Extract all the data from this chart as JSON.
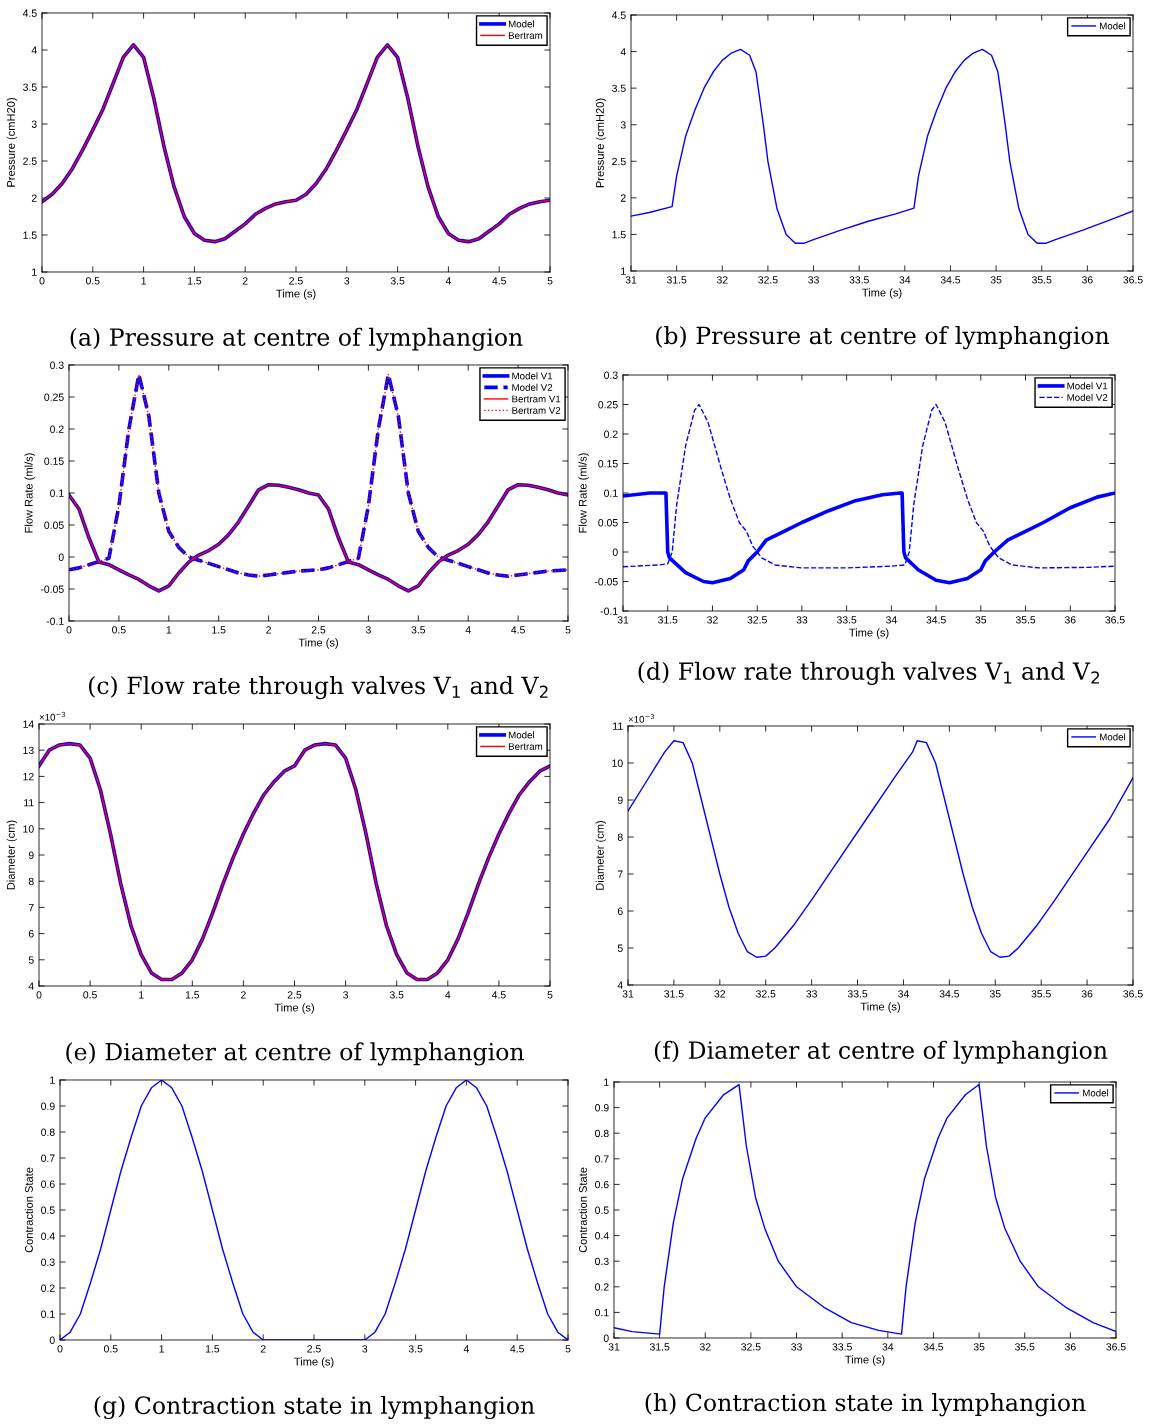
{
  "chart_data": [
    {
      "type": "line",
      "title": "(a) Pressure at centre of lymphangion",
      "xlabel": "Time (s)",
      "ylabel": "Pressure (cmH20)",
      "xlim": [
        0,
        5
      ],
      "ylim": [
        1,
        4.5
      ],
      "xticks": [
        0,
        0.5,
        1,
        1.5,
        2,
        2.5,
        3,
        3.5,
        4,
        4.5,
        5
      ],
      "yticks": [
        1,
        1.5,
        2,
        2.5,
        3,
        3.5,
        4,
        4.5
      ],
      "legend": "top right",
      "grid": false,
      "x": [
        0,
        0.1,
        0.2,
        0.3,
        0.4,
        0.5,
        0.6,
        0.7,
        0.8,
        0.9,
        1.0,
        1.1,
        1.2,
        1.3,
        1.4,
        1.5,
        1.6,
        1.7,
        1.8,
        1.9,
        2.0,
        2.1,
        2.2,
        2.3,
        2.4,
        2.5,
        2.6,
        2.7,
        2.8,
        2.9,
        3.0,
        3.1,
        3.2,
        3.3,
        3.4,
        3.5,
        3.6,
        3.7,
        3.8,
        3.9,
        4.0,
        4.1,
        4.2,
        4.3,
        4.4,
        4.5,
        4.6,
        4.7,
        4.8,
        4.9,
        5.0
      ],
      "series": [
        {
          "name": "Model",
          "color": "#0000ff",
          "values": [
            1.95,
            2.05,
            2.2,
            2.4,
            2.65,
            2.92,
            3.2,
            3.55,
            3.9,
            4.07,
            3.9,
            3.35,
            2.7,
            2.15,
            1.75,
            1.52,
            1.43,
            1.41,
            1.45,
            1.55,
            1.65,
            1.78,
            1.86,
            1.92,
            1.95,
            1.97,
            2.05,
            2.2,
            2.4,
            2.65,
            2.92,
            3.2,
            3.55,
            3.9,
            4.07,
            3.9,
            3.35,
            2.7,
            2.15,
            1.75,
            1.52,
            1.43,
            1.41,
            1.45,
            1.55,
            1.65,
            1.78,
            1.86,
            1.92,
            1.95,
            1.97
          ]
        },
        {
          "name": "Bertram",
          "color": "#ff0000",
          "values": [
            1.95,
            2.05,
            2.2,
            2.4,
            2.65,
            2.92,
            3.2,
            3.55,
            3.9,
            4.07,
            3.9,
            3.35,
            2.7,
            2.15,
            1.75,
            1.52,
            1.43,
            1.41,
            1.45,
            1.55,
            1.65,
            1.78,
            1.86,
            1.92,
            1.95,
            1.97,
            2.05,
            2.2,
            2.4,
            2.65,
            2.92,
            3.2,
            3.55,
            3.9,
            4.07,
            3.9,
            3.35,
            2.7,
            2.15,
            1.75,
            1.52,
            1.43,
            1.41,
            1.45,
            1.55,
            1.65,
            1.78,
            1.86,
            1.92,
            1.95,
            1.97
          ]
        }
      ]
    },
    {
      "type": "line",
      "title": "(b) Pressure at centre of lymphangion",
      "xlabel": "Time (s)",
      "ylabel": "Pressure (cmH20)",
      "xlim": [
        31,
        36.5
      ],
      "ylim": [
        1,
        4.5
      ],
      "xticks": [
        31,
        31.5,
        32,
        32.5,
        33,
        33.5,
        34,
        34.5,
        35,
        35.5,
        36,
        36.5
      ],
      "yticks": [
        1,
        1.5,
        2,
        2.5,
        3,
        3.5,
        4,
        4.5
      ],
      "legend": "top right",
      "grid": false,
      "series": [
        {
          "name": "Model",
          "color": "#0000ff",
          "x": [
            31,
            31.2,
            31.45,
            31.5,
            31.6,
            31.7,
            31.8,
            31.9,
            32.0,
            32.1,
            32.2,
            32.3,
            32.37,
            32.45,
            32.5,
            32.6,
            32.7,
            32.8,
            32.9,
            33.0,
            33.3,
            33.6,
            33.9,
            34.1,
            34.15,
            34.25,
            34.35,
            34.45,
            34.55,
            34.65,
            34.75,
            34.85,
            34.95,
            35.02,
            35.1,
            35.15,
            35.25,
            35.35,
            35.45,
            35.55,
            35.65,
            35.95,
            36.25,
            36.5
          ],
          "values": [
            1.75,
            1.8,
            1.88,
            2.3,
            2.85,
            3.2,
            3.5,
            3.72,
            3.88,
            3.98,
            4.03,
            3.95,
            3.72,
            3.0,
            2.5,
            1.85,
            1.5,
            1.38,
            1.38,
            1.43,
            1.56,
            1.68,
            1.78,
            1.86,
            2.3,
            2.85,
            3.2,
            3.5,
            3.72,
            3.88,
            3.98,
            4.03,
            3.95,
            3.72,
            3.0,
            2.5,
            1.85,
            1.5,
            1.38,
            1.38,
            1.43,
            1.56,
            1.7,
            1.82
          ]
        }
      ]
    },
    {
      "type": "line",
      "title": "(c) Flow rate through valves V$_{1}$ and V$_{2}$",
      "xlabel": "Time (s)",
      "ylabel": "Flow Rate (ml/s)",
      "xlim": [
        0,
        5
      ],
      "ylim": [
        -0.1,
        0.3
      ],
      "xticks": [
        0,
        0.5,
        1,
        1.5,
        2,
        2.5,
        3,
        3.5,
        4,
        4.5,
        5
      ],
      "yticks": [
        -0.1,
        -0.05,
        0,
        0.05,
        0.1,
        0.15,
        0.2,
        0.25,
        0.3
      ],
      "legend": "top right",
      "grid": false,
      "x": [
        0,
        0.1,
        0.2,
        0.3,
        0.4,
        0.5,
        0.6,
        0.7,
        0.8,
        0.9,
        1.0,
        1.1,
        1.2,
        1.3,
        1.4,
        1.5,
        1.6,
        1.7,
        1.8,
        1.9,
        2.0,
        2.1,
        2.2,
        2.3,
        2.4,
        2.5,
        2.6,
        2.7,
        2.8,
        2.9,
        3.0,
        3.1,
        3.2,
        3.3,
        3.4,
        3.5,
        3.6,
        3.7,
        3.8,
        3.9,
        4.0,
        4.1,
        4.2,
        4.3,
        4.4,
        4.5,
        4.6,
        4.7,
        4.8,
        4.9,
        5.0
      ],
      "series": [
        {
          "name": "Model V1",
          "color": "#0000ff",
          "line_style": "solid",
          "values": [
            0.097,
            0.075,
            0.03,
            -0.008,
            -0.012,
            -0.02,
            -0.028,
            -0.035,
            -0.045,
            -0.053,
            -0.045,
            -0.025,
            -0.008,
            0.003,
            0.01,
            0.02,
            0.035,
            0.055,
            0.08,
            0.105,
            0.113,
            0.112,
            0.109,
            0.105,
            0.1,
            0.097,
            0.075,
            0.03,
            -0.008,
            -0.012,
            -0.02,
            -0.028,
            -0.035,
            -0.045,
            -0.053,
            -0.045,
            -0.025,
            -0.008,
            0.003,
            0.01,
            0.02,
            0.035,
            0.055,
            0.08,
            0.105,
            0.113,
            0.112,
            0.109,
            0.105,
            0.1,
            0.097
          ]
        },
        {
          "name": "Model V2",
          "color": "#0000ff",
          "line_style": "dashed",
          "values": [
            -0.02,
            -0.017,
            -0.012,
            -0.007,
            -0.002,
            0.08,
            0.2,
            0.285,
            0.22,
            0.1,
            0.04,
            0.015,
            0.0,
            -0.005,
            -0.01,
            -0.015,
            -0.02,
            -0.025,
            -0.028,
            -0.03,
            -0.028,
            -0.026,
            -0.024,
            -0.022,
            -0.021,
            -0.02,
            -0.017,
            -0.012,
            -0.007,
            -0.002,
            0.08,
            0.2,
            0.285,
            0.22,
            0.1,
            0.04,
            0.015,
            0.0,
            -0.005,
            -0.01,
            -0.015,
            -0.02,
            -0.025,
            -0.028,
            -0.03,
            -0.028,
            -0.026,
            -0.024,
            -0.022,
            -0.021,
            -0.02
          ]
        },
        {
          "name": "Bertram V1",
          "color": "#ff0000",
          "line_style": "solid",
          "values": [
            0.097,
            0.075,
            0.03,
            -0.008,
            -0.012,
            -0.02,
            -0.028,
            -0.035,
            -0.045,
            -0.053,
            -0.045,
            -0.025,
            -0.008,
            0.003,
            0.01,
            0.02,
            0.035,
            0.055,
            0.08,
            0.105,
            0.113,
            0.112,
            0.109,
            0.105,
            0.1,
            0.097,
            0.075,
            0.03,
            -0.008,
            -0.012,
            -0.02,
            -0.028,
            -0.035,
            -0.045,
            -0.053,
            -0.045,
            -0.025,
            -0.008,
            0.003,
            0.01,
            0.02,
            0.035,
            0.055,
            0.08,
            0.105,
            0.113,
            0.112,
            0.109,
            0.105,
            0.1,
            0.097
          ]
        },
        {
          "name": "Bertram V2",
          "color": "#ff0000",
          "line_style": "dotted",
          "values": [
            -0.02,
            -0.017,
            -0.012,
            -0.007,
            -0.002,
            0.08,
            0.2,
            0.285,
            0.22,
            0.1,
            0.04,
            0.015,
            0.0,
            -0.005,
            -0.01,
            -0.015,
            -0.02,
            -0.025,
            -0.028,
            -0.03,
            -0.028,
            -0.026,
            -0.024,
            -0.022,
            -0.021,
            -0.02,
            -0.017,
            -0.012,
            -0.007,
            -0.002,
            0.08,
            0.2,
            0.285,
            0.22,
            0.1,
            0.04,
            0.015,
            0.0,
            -0.005,
            -0.01,
            -0.015,
            -0.02,
            -0.025,
            -0.028,
            -0.03,
            -0.028,
            -0.026,
            -0.024,
            -0.022,
            -0.021,
            -0.02
          ]
        }
      ]
    },
    {
      "type": "line",
      "title": "(d) Flow rate through valves V$_{1}$ and V$_{2}$",
      "xlabel": "Time (s)",
      "ylabel": "Flow Rate (ml/s)",
      "xlim": [
        31,
        36.5
      ],
      "ylim": [
        -0.1,
        0.3
      ],
      "xticks": [
        31,
        31.5,
        32,
        32.5,
        33,
        33.5,
        34,
        34.5,
        35,
        35.5,
        36,
        36.5
      ],
      "yticks": [
        -0.1,
        -0.05,
        0,
        0.05,
        0.1,
        0.15,
        0.2,
        0.25,
        0.3
      ],
      "legend": "top right",
      "grid": false,
      "series": [
        {
          "name": "Model V1",
          "color": "#0000ff",
          "line_style": "solid",
          "x": [
            31,
            31.3,
            31.48,
            31.5,
            31.52,
            31.7,
            31.9,
            32.0,
            32.2,
            32.35,
            32.4,
            32.5,
            32.6,
            32.8,
            33.0,
            33.3,
            33.6,
            33.9,
            34.1,
            34.12,
            34.14,
            34.16,
            34.3,
            34.5,
            34.65,
            34.85,
            35.0,
            35.05,
            35.15,
            35.3,
            35.5,
            35.7,
            36.0,
            36.3,
            36.5
          ],
          "values": [
            0.095,
            0.1,
            0.1,
            0.0,
            -0.01,
            -0.035,
            -0.05,
            -0.052,
            -0.045,
            -0.03,
            -0.015,
            0.0,
            0.02,
            0.035,
            0.05,
            0.07,
            0.087,
            0.097,
            0.1,
            0.1,
            0.0,
            -0.01,
            -0.03,
            -0.048,
            -0.052,
            -0.045,
            -0.03,
            -0.015,
            0.0,
            0.02,
            0.035,
            0.05,
            0.075,
            0.093,
            0.1
          ]
        },
        {
          "name": "Model V2",
          "color": "#0000ff",
          "line_style": "dashed",
          "x": [
            31,
            31.4,
            31.5,
            31.55,
            31.6,
            31.7,
            31.8,
            31.85,
            31.95,
            32.1,
            32.2,
            32.3,
            32.38,
            32.45,
            32.55,
            32.7,
            33.0,
            33.5,
            34.0,
            34.15,
            34.2,
            34.25,
            34.35,
            34.45,
            34.5,
            34.6,
            34.75,
            34.85,
            34.95,
            35.03,
            35.1,
            35.2,
            35.35,
            35.65,
            36.2,
            36.5
          ],
          "values": [
            -0.025,
            -0.022,
            -0.02,
            0.0,
            0.08,
            0.18,
            0.24,
            0.25,
            0.22,
            0.14,
            0.09,
            0.05,
            0.035,
            0.01,
            -0.01,
            -0.022,
            -0.027,
            -0.027,
            -0.024,
            -0.022,
            0.0,
            0.08,
            0.18,
            0.24,
            0.25,
            0.22,
            0.14,
            0.09,
            0.05,
            0.035,
            0.01,
            -0.01,
            -0.022,
            -0.027,
            -0.026,
            -0.024
          ]
        }
      ]
    },
    {
      "type": "line",
      "title": "(e) Diameter at centre of lymphangion",
      "xlabel": "Time (s)",
      "ylabel": "Diameter (cm)",
      "annotations": [
        "×10$^{−3}$"
      ],
      "xlim": [
        0,
        5
      ],
      "ylim": [
        4,
        14
      ],
      "xticks": [
        0,
        0.5,
        1,
        1.5,
        2,
        2.5,
        3,
        3.5,
        4,
        4.5,
        5
      ],
      "yticks": [
        4,
        5,
        6,
        7,
        8,
        9,
        10,
        11,
        12,
        13,
        14
      ],
      "legend": "top right",
      "grid": false,
      "x": [
        0,
        0.1,
        0.2,
        0.3,
        0.4,
        0.5,
        0.6,
        0.7,
        0.8,
        0.9,
        1.0,
        1.1,
        1.2,
        1.3,
        1.4,
        1.5,
        1.6,
        1.7,
        1.8,
        1.9,
        2.0,
        2.1,
        2.2,
        2.3,
        2.4,
        2.5,
        2.6,
        2.7,
        2.8,
        2.9,
        3.0,
        3.1,
        3.2,
        3.3,
        3.4,
        3.5,
        3.6,
        3.7,
        3.8,
        3.9,
        4.0,
        4.1,
        4.2,
        4.3,
        4.4,
        4.5,
        4.6,
        4.7,
        4.8,
        4.9,
        5.0
      ],
      "series": [
        {
          "name": "Model",
          "color": "#0000ff",
          "values": [
            12.4,
            13.0,
            13.2,
            13.25,
            13.2,
            12.7,
            11.5,
            9.8,
            7.9,
            6.3,
            5.2,
            4.5,
            4.25,
            4.25,
            4.5,
            5.0,
            5.8,
            6.8,
            7.9,
            8.9,
            9.8,
            10.6,
            11.3,
            11.8,
            12.2,
            12.4,
            13.0,
            13.2,
            13.25,
            13.2,
            12.7,
            11.5,
            9.8,
            7.9,
            6.3,
            5.2,
            4.5,
            4.25,
            4.25,
            4.5,
            5.0,
            5.8,
            6.8,
            7.9,
            8.9,
            9.8,
            10.6,
            11.3,
            11.8,
            12.2,
            12.4
          ]
        },
        {
          "name": "Bertram",
          "color": "#ff0000",
          "values": [
            12.4,
            13.0,
            13.2,
            13.25,
            13.2,
            12.7,
            11.5,
            9.8,
            7.9,
            6.3,
            5.2,
            4.5,
            4.25,
            4.25,
            4.5,
            5.0,
            5.8,
            6.8,
            7.9,
            8.9,
            9.8,
            10.6,
            11.3,
            11.8,
            12.2,
            12.4,
            13.0,
            13.2,
            13.25,
            13.2,
            12.7,
            11.5,
            9.8,
            7.9,
            6.3,
            5.2,
            4.5,
            4.25,
            4.25,
            4.5,
            5.0,
            5.8,
            6.8,
            7.9,
            8.9,
            9.8,
            10.6,
            11.3,
            11.8,
            12.2,
            12.4
          ]
        }
      ]
    },
    {
      "type": "line",
      "title": "(f) Diameter at centre of lymphangion",
      "xlabel": "Time (s)",
      "ylabel": "Diameter (cm)",
      "annotations": [
        "×10$^{−3}$"
      ],
      "xlim": [
        31,
        36.5
      ],
      "ylim": [
        4,
        11
      ],
      "xticks": [
        31,
        31.5,
        32,
        32.5,
        33,
        33.5,
        34,
        34.5,
        35,
        35.5,
        36,
        36.5
      ],
      "yticks": [
        4,
        5,
        6,
        7,
        8,
        9,
        10,
        11
      ],
      "legend": "top right",
      "grid": false,
      "series": [
        {
          "name": "Model",
          "color": "#0000ff",
          "x": [
            31,
            31.2,
            31.4,
            31.5,
            31.6,
            31.7,
            31.8,
            31.9,
            32.0,
            32.1,
            32.2,
            32.3,
            32.4,
            32.5,
            32.6,
            32.8,
            33.0,
            33.3,
            33.6,
            33.9,
            34.1,
            34.15,
            34.25,
            34.35,
            34.45,
            34.55,
            34.65,
            34.75,
            34.85,
            34.95,
            35.05,
            35.15,
            35.25,
            35.45,
            35.65,
            35.95,
            36.25,
            36.5
          ],
          "values": [
            8.7,
            9.5,
            10.3,
            10.6,
            10.55,
            10.0,
            9.0,
            8.0,
            7.0,
            6.1,
            5.4,
            4.9,
            4.75,
            4.78,
            5.0,
            5.6,
            6.3,
            7.4,
            8.5,
            9.6,
            10.3,
            10.6,
            10.55,
            10.0,
            9.0,
            8.0,
            7.0,
            6.1,
            5.4,
            4.9,
            4.75,
            4.78,
            5.0,
            5.6,
            6.3,
            7.4,
            8.5,
            9.6
          ]
        }
      ]
    },
    {
      "type": "line",
      "title": "(g) Contraction state in lymphangion",
      "xlabel": "Time (s)",
      "ylabel": "Contraction State",
      "xlim": [
        0,
        5
      ],
      "ylim": [
        0,
        1
      ],
      "xticks": [
        0,
        0.5,
        1,
        1.5,
        2,
        2.5,
        3,
        3.5,
        4,
        4.5,
        5
      ],
      "yticks": [
        0,
        0.1,
        0.2,
        0.3,
        0.4,
        0.5,
        0.6,
        0.7,
        0.8,
        0.9,
        1
      ],
      "legend": false,
      "grid": false,
      "x": [
        0,
        0.1,
        0.2,
        0.3,
        0.4,
        0.5,
        0.6,
        0.7,
        0.8,
        0.9,
        1.0,
        1.1,
        1.2,
        1.3,
        1.4,
        1.5,
        1.6,
        1.7,
        1.8,
        1.9,
        2.0,
        2.1,
        2.2,
        2.3,
        2.4,
        2.5,
        2.6,
        2.7,
        2.8,
        2.9,
        3.0,
        3.1,
        3.2,
        3.3,
        3.4,
        3.5,
        3.6,
        3.7,
        3.8,
        3.9,
        4.0,
        4.1,
        4.2,
        4.3,
        4.4,
        4.5,
        4.6,
        4.7,
        4.8,
        4.9,
        5.0
      ],
      "series": [
        {
          "color": "#0000ff",
          "values": [
            0,
            0.03,
            0.1,
            0.22,
            0.35,
            0.5,
            0.65,
            0.78,
            0.9,
            0.97,
            1.0,
            0.97,
            0.9,
            0.78,
            0.65,
            0.5,
            0.35,
            0.22,
            0.1,
            0.03,
            0,
            0,
            0,
            0,
            0,
            0,
            0,
            0,
            0,
            0,
            0,
            0.03,
            0.1,
            0.22,
            0.35,
            0.5,
            0.65,
            0.78,
            0.9,
            0.97,
            1.0,
            0.97,
            0.9,
            0.78,
            0.65,
            0.5,
            0.35,
            0.22,
            0.1,
            0.03,
            0
          ]
        }
      ]
    },
    {
      "type": "line",
      "title": "(h) Contraction state in lymphangion",
      "xlabel": "Time (s)",
      "ylabel": "Contraction State",
      "xlim": [
        31,
        36.5
      ],
      "ylim": [
        0,
        1
      ],
      "xticks": [
        31,
        31.5,
        32,
        32.5,
        33,
        33.5,
        34,
        34.5,
        35,
        35.5,
        36,
        36.5
      ],
      "yticks": [
        0,
        0.1,
        0.2,
        0.3,
        0.4,
        0.5,
        0.6,
        0.7,
        0.8,
        0.9,
        1
      ],
      "legend": "top right",
      "grid": false,
      "series": [
        {
          "name": "Model",
          "color": "#0000ff",
          "x": [
            31,
            31.2,
            31.5,
            31.55,
            31.65,
            31.75,
            31.9,
            32.0,
            32.2,
            32.37,
            32.45,
            32.55,
            32.65,
            32.8,
            33.0,
            33.3,
            33.6,
            33.9,
            34.15,
            34.2,
            34.3,
            34.4,
            34.55,
            34.65,
            34.85,
            35.0,
            35.08,
            35.18,
            35.28,
            35.45,
            35.65,
            35.95,
            36.25,
            36.5
          ],
          "values": [
            0.04,
            0.025,
            0.015,
            0.2,
            0.45,
            0.62,
            0.78,
            0.86,
            0.95,
            0.99,
            0.75,
            0.55,
            0.43,
            0.3,
            0.2,
            0.12,
            0.06,
            0.03,
            0.015,
            0.2,
            0.45,
            0.62,
            0.78,
            0.86,
            0.95,
            0.99,
            0.75,
            0.55,
            0.43,
            0.3,
            0.2,
            0.12,
            0.06,
            0.025
          ]
        }
      ]
    }
  ]
}
